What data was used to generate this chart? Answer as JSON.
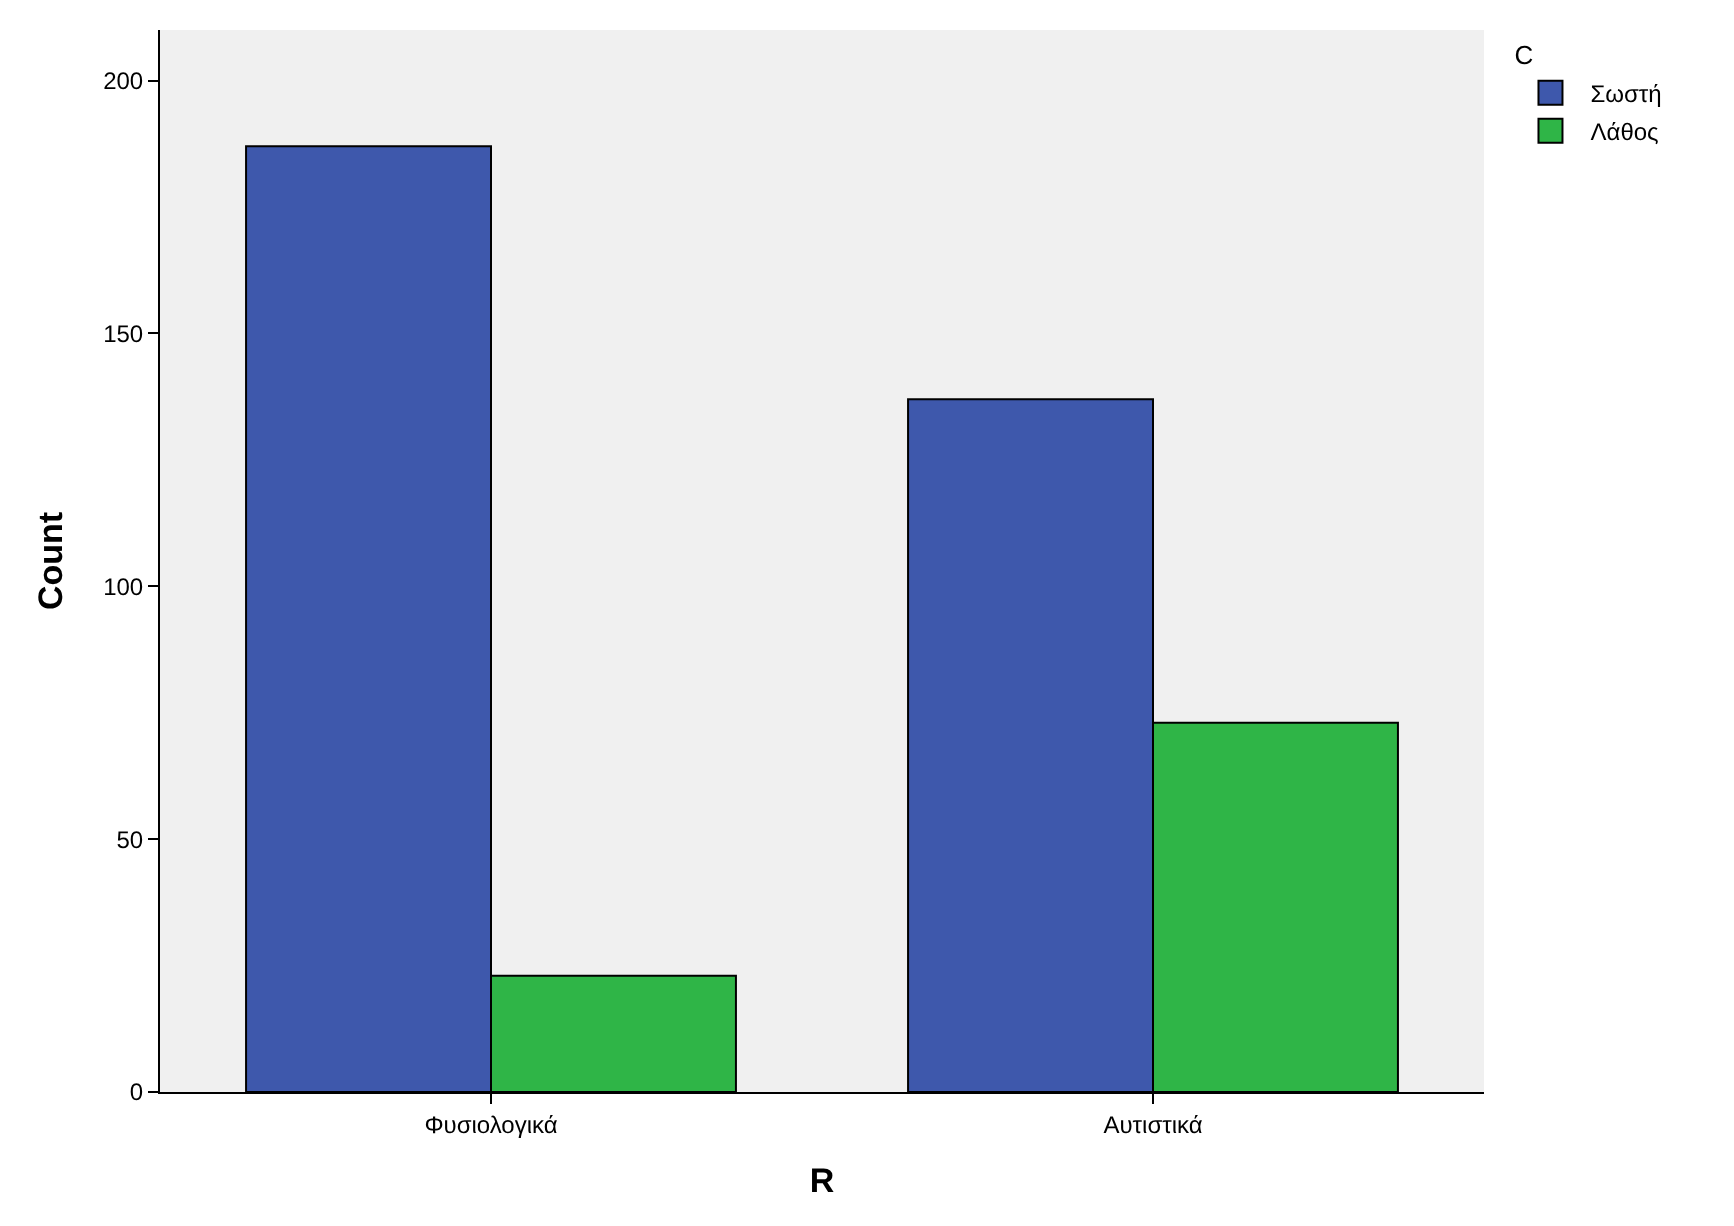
{
  "chart_data": {
    "type": "bar",
    "xlabel": "R",
    "ylabel": "Count",
    "legend_title": "C",
    "categories": [
      "Φυσιολογικά",
      "Αυτιστικά"
    ],
    "series": [
      {
        "name": "Σωστή",
        "color": "#3e58ac",
        "values": [
          187,
          137
        ]
      },
      {
        "name": "Λάθος",
        "color": "#2fb547",
        "values": [
          23,
          73
        ]
      }
    ],
    "ylim": [
      0,
      210
    ],
    "yticks": [
      0,
      50,
      100,
      150,
      200
    ],
    "grid": false,
    "legend": "top right"
  }
}
